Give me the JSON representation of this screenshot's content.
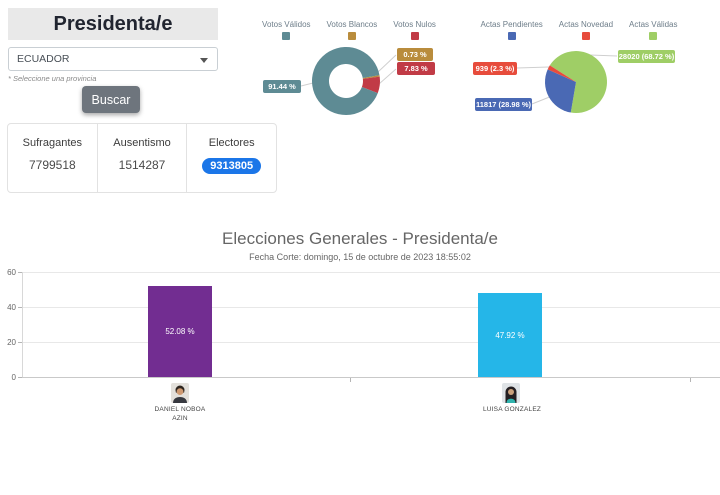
{
  "header": {
    "page_title": "Presidenta/e",
    "country_select_value": "ECUADOR",
    "province_hint": "* Seleccione una provincia",
    "search_button_label": "Buscar"
  },
  "stats_cards": [
    {
      "label": "Sufragantes",
      "value": "7799518"
    },
    {
      "label": "Ausentismo",
      "value": "1514287"
    },
    {
      "label": "Electores",
      "value": "9313805"
    }
  ],
  "colors": {
    "electores_badge": "#1b76e8",
    "search_button": "#6e757d"
  },
  "chart_data": [
    {
      "type": "pie",
      "variant": "donut",
      "legend_position": "top",
      "slices": [
        {
          "name": "Votos Válidos",
          "value": 91.44,
          "label": "91.44 %",
          "color": "#5e8b94"
        },
        {
          "name": "Votos Blancos",
          "value": 0.73,
          "label": "0.73 %",
          "color": "#b98c3c"
        },
        {
          "name": "Votos Nulos",
          "value": 7.83,
          "label": "7.83 %",
          "color": "#c13b46"
        }
      ]
    },
    {
      "type": "pie",
      "variant": "pie",
      "legend_position": "top",
      "slices": [
        {
          "name": "Actas Pendientes",
          "value": 28.98,
          "count": 11817,
          "label": "11817 (28.98 %)",
          "color": "#4a69b4"
        },
        {
          "name": "Actas Novedad",
          "value": 2.3,
          "count": 939,
          "label": "939 (2.3 %)",
          "color": "#e74c3c"
        },
        {
          "name": "Actas Válidas",
          "value": 68.72,
          "count": 28020,
          "label": "28020 (68.72 %)",
          "color": "#9fce66"
        }
      ]
    },
    {
      "type": "bar",
      "title": "Elecciones Generales - Presidenta/e",
      "subtitle": "Fecha Corte: domingo, 15 de octubre de 2023 18:55:02",
      "categories": [
        "DANIEL NOBOA AZIN",
        "LUISA GONZALEZ"
      ],
      "values": [
        52.08,
        47.92
      ],
      "value_labels": [
        "52.08 %",
        "47.92 %"
      ],
      "colors": [
        "#722d91",
        "#25b6e8"
      ],
      "ylim": [
        0,
        60
      ],
      "yticks": [
        0,
        20,
        40,
        60
      ],
      "grid": true,
      "legend_position": "none"
    }
  ]
}
